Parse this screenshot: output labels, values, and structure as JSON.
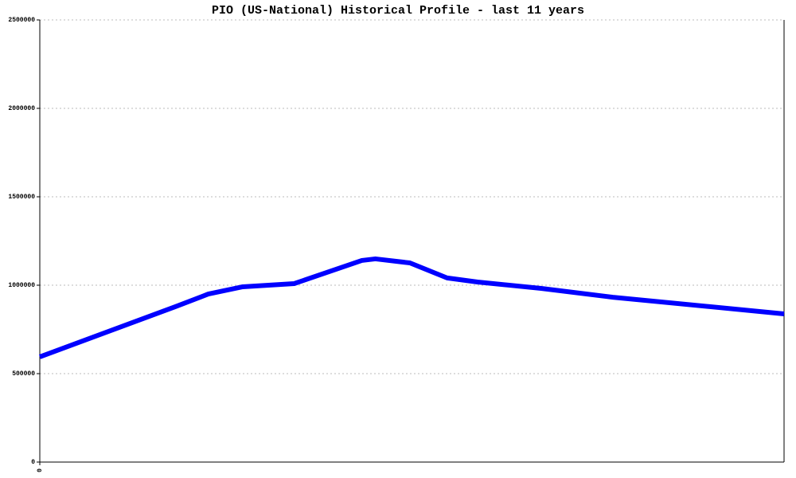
{
  "chart_data": {
    "type": "line",
    "title": "PIO (US-National) Historical Profile - last 11 years",
    "x": [
      0,
      2.0,
      2.49,
      3.0,
      3.76,
      4.76,
      4.96,
      5.47,
      6.02,
      6.47,
      7.41,
      8.47,
      11
    ],
    "series": [
      {
        "color": "#0000ff",
        "values": [
          595000,
          878000,
          950000,
          991000,
          1009000,
          1140000,
          1149000,
          1126000,
          1041000,
          1018000,
          982000,
          932000,
          838000
        ]
      }
    ],
    "xlim": [
      0,
      11
    ],
    "xticks": [
      0
    ],
    "ylim": [
      0,
      2500000
    ],
    "yticks": [
      0,
      500000,
      1000000,
      1500000,
      2000000,
      2500000
    ],
    "grid": true
  }
}
